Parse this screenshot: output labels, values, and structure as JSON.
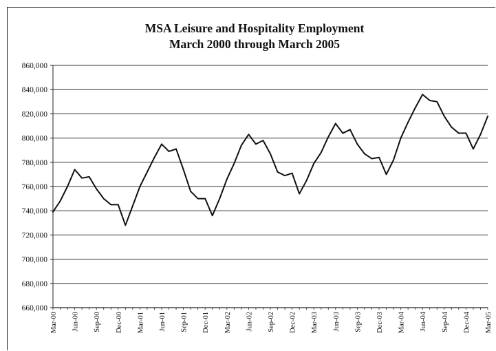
{
  "chart_data": {
    "type": "line",
    "title": "MSA Leisure and Hospitality Employment",
    "subtitle": "March 2000 through March 2005",
    "xlabel": "",
    "ylabel": "",
    "ylim": [
      660000,
      860000
    ],
    "ytick_labels": [
      "660,000",
      "680,000",
      "700,000",
      "720,000",
      "740,000",
      "760,000",
      "780,000",
      "800,000",
      "820,000",
      "840,000",
      "860,000"
    ],
    "x_tick_labels": [
      "Mar-00",
      "Jun-00",
      "Sep-00",
      "Dec-00",
      "Mar-01",
      "Jun-01",
      "Sep-01",
      "Dec-01",
      "Mar-02",
      "Jun-02",
      "Sep-02",
      "Dec-02",
      "Mar-03",
      "Jun-03",
      "Sep-03",
      "Dec-03",
      "Mar-04",
      "Jun-04",
      "Sep-04",
      "Dec-04",
      "Mar-05"
    ],
    "grid": true,
    "legend": "none",
    "line_color": "#111111",
    "x": [
      "Mar-00",
      "Apr-00",
      "May-00",
      "Jun-00",
      "Jul-00",
      "Aug-00",
      "Sep-00",
      "Oct-00",
      "Nov-00",
      "Dec-00",
      "Jan-01",
      "Feb-01",
      "Mar-01",
      "Apr-01",
      "May-01",
      "Jun-01",
      "Jul-01",
      "Aug-01",
      "Sep-01",
      "Oct-01",
      "Nov-01",
      "Dec-01",
      "Jan-02",
      "Feb-02",
      "Mar-02",
      "Apr-02",
      "May-02",
      "Jun-02",
      "Jul-02",
      "Aug-02",
      "Sep-02",
      "Oct-02",
      "Nov-02",
      "Dec-02",
      "Jan-03",
      "Feb-03",
      "Mar-03",
      "Apr-03",
      "May-03",
      "Jun-03",
      "Jul-03",
      "Aug-03",
      "Sep-03",
      "Oct-03",
      "Nov-03",
      "Dec-03",
      "Jan-04",
      "Feb-04",
      "Mar-04",
      "Apr-04",
      "May-04",
      "Jun-04",
      "Jul-04",
      "Aug-04",
      "Sep-04",
      "Oct-04",
      "Nov-04",
      "Dec-04",
      "Jan-05",
      "Feb-05",
      "Mar-05"
    ],
    "series": [
      {
        "values": [
          739000,
          748000,
          760000,
          774000,
          767000,
          768000,
          758000,
          750000,
          745000,
          745000,
          728000,
          744000,
          760000,
          772000,
          784000,
          795000,
          789000,
          791000,
          774000,
          756000,
          750000,
          750000,
          736000,
          750000,
          766000,
          779000,
          794000,
          803000,
          795000,
          798000,
          787000,
          772000,
          769000,
          771000,
          754000,
          765000,
          779000,
          788000,
          801000,
          812000,
          804000,
          807000,
          795000,
          787000,
          783000,
          784000,
          770000,
          782000,
          800000,
          813000,
          825000,
          836000,
          831000,
          830000,
          818000,
          809000,
          804000,
          804000,
          791000,
          803000,
          818000
        ]
      }
    ]
  }
}
